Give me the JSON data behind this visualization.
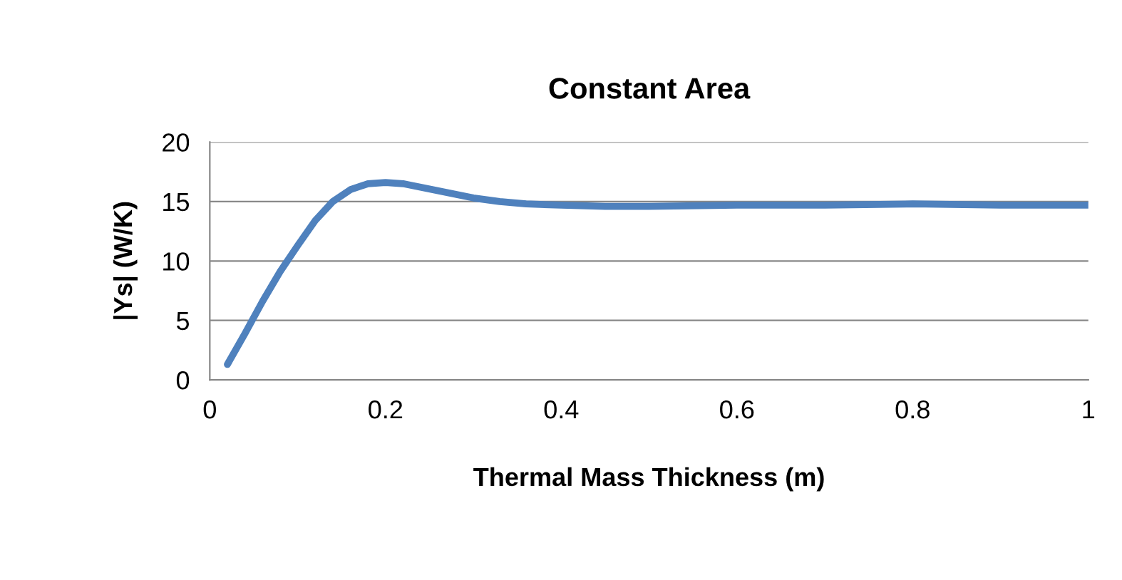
{
  "chart_data": {
    "type": "line",
    "title": "Constant Area",
    "xlabel": "Thermal Mass Thickness (m)",
    "ylabel": "|Ys| (W/K)",
    "series": [
      {
        "color": "#4f81bd",
        "x": [
          0.02,
          0.04,
          0.06,
          0.08,
          0.1,
          0.12,
          0.14,
          0.16,
          0.18,
          0.2,
          0.22,
          0.24,
          0.26,
          0.28,
          0.3,
          0.33,
          0.36,
          0.4,
          0.45,
          0.5,
          0.6,
          0.7,
          0.8,
          0.9,
          1.0
        ],
        "values": [
          1.3,
          3.9,
          6.6,
          9.1,
          11.3,
          13.4,
          15.0,
          16.0,
          16.5,
          16.6,
          16.5,
          16.2,
          15.9,
          15.6,
          15.3,
          15.0,
          14.8,
          14.7,
          14.6,
          14.6,
          14.7,
          14.7,
          14.8,
          14.7,
          14.7
        ]
      }
    ],
    "xlim": [
      0,
      1
    ],
    "xticks": [
      0,
      0.2,
      0.4,
      0.6,
      0.8,
      1
    ],
    "ylim": [
      0,
      20
    ],
    "yticks": [
      0,
      5,
      10,
      15,
      20
    ],
    "grid": "y",
    "marker": "none",
    "line_style": "solid",
    "legend": false
  }
}
